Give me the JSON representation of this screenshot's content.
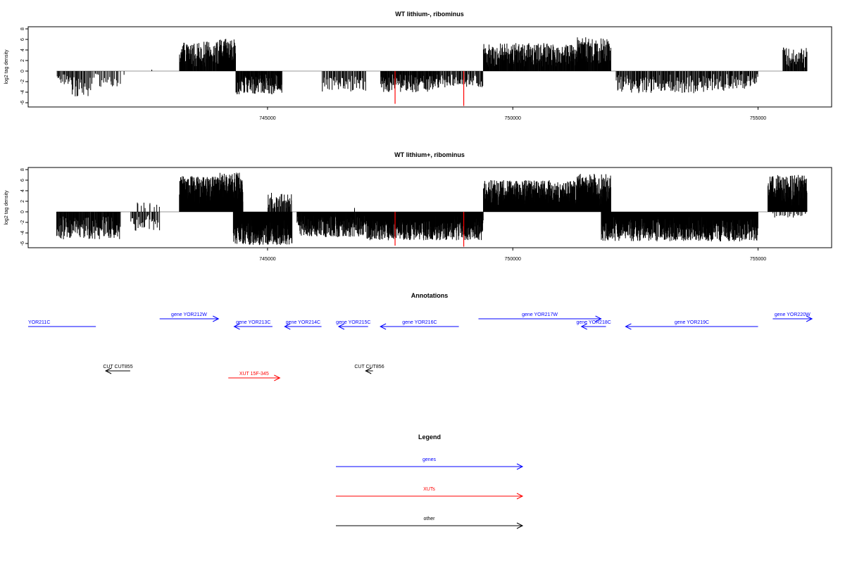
{
  "chart_data": [
    {
      "type": "bar",
      "title": "WT lithium-, ribominus",
      "ylabel": "log2 tag density",
      "xlim": [
        740120,
        756500
      ],
      "ylim": [
        -6.8,
        8.4
      ],
      "yticks": [
        -6,
        -4,
        -2,
        0,
        2,
        4,
        6,
        8
      ],
      "xticks": [
        745000,
        750000,
        755000
      ],
      "baseline_color": "#999999",
      "bar_color": "#000000",
      "highlight_color": "#ff0000",
      "highlight_bars": [
        {
          "x": 747600,
          "y": -6.2
        },
        {
          "x": 749000,
          "y": -6.6
        }
      ],
      "segments": [
        {
          "start": 740700,
          "end": 741000,
          "sign": -1,
          "max": 2.6,
          "density": 9
        },
        {
          "start": 741000,
          "end": 741400,
          "sign": -1,
          "max": 4.8,
          "density": 9
        },
        {
          "start": 741400,
          "end": 742000,
          "sign": -1,
          "max": 3.0,
          "density": 6
        },
        {
          "start": 742000,
          "end": 742100,
          "sign": -1,
          "max": 1.6,
          "density": 2
        },
        {
          "start": 742600,
          "end": 742650,
          "sign": 1,
          "max": 0.5,
          "density": 1
        },
        {
          "start": 743200,
          "end": 744000,
          "sign": 1,
          "max": 5.6,
          "density": 20
        },
        {
          "start": 744000,
          "end": 744350,
          "sign": 1,
          "max": 6.1,
          "density": 26
        },
        {
          "start": 744350,
          "end": 745300,
          "sign": -1,
          "max": 4.4,
          "density": 18
        },
        {
          "start": 746100,
          "end": 747000,
          "sign": -1,
          "max": 3.9,
          "density": 9
        },
        {
          "start": 747300,
          "end": 748500,
          "sign": -1,
          "max": 4.0,
          "density": 16
        },
        {
          "start": 748500,
          "end": 749400,
          "sign": -1,
          "max": 3.2,
          "density": 10
        },
        {
          "start": 749400,
          "end": 751500,
          "sign": 1,
          "max": 5.3,
          "density": 20
        },
        {
          "start": 751300,
          "end": 752000,
          "sign": 1,
          "max": 6.5,
          "density": 20
        },
        {
          "start": 752100,
          "end": 754000,
          "sign": -1,
          "max": 4.2,
          "density": 11
        },
        {
          "start": 754000,
          "end": 755000,
          "sign": -1,
          "max": 3.8,
          "density": 10
        },
        {
          "start": 755500,
          "end": 756000,
          "sign": 1,
          "max": 4.5,
          "density": 14
        }
      ]
    },
    {
      "type": "bar",
      "title": "WT lithium+, ribominus",
      "ylabel": "log2 tag density",
      "xlim": [
        740120,
        756500
      ],
      "ylim": [
        -6.8,
        8.4
      ],
      "yticks": [
        -6,
        -4,
        -2,
        0,
        2,
        4,
        6,
        8
      ],
      "xticks": [
        745000,
        750000,
        755000
      ],
      "baseline_color": "#999999",
      "bar_color": "#000000",
      "highlight_color": "#ff0000",
      "highlight_bars": [
        {
          "x": 747600,
          "y": -6.4
        },
        {
          "x": 749000,
          "y": -6.6
        }
      ],
      "segments": [
        {
          "start": 740700,
          "end": 742000,
          "sign": -1,
          "max": 5.2,
          "density": 16
        },
        {
          "start": 742200,
          "end": 742800,
          "sign": -1,
          "max": 3.6,
          "density": 8
        },
        {
          "start": 742300,
          "end": 742800,
          "sign": 1,
          "max": 1.8,
          "density": 3
        },
        {
          "start": 743200,
          "end": 744000,
          "sign": 1,
          "max": 6.8,
          "density": 35
        },
        {
          "start": 744000,
          "end": 744500,
          "sign": 1,
          "max": 7.5,
          "density": 35
        },
        {
          "start": 744300,
          "end": 745500,
          "sign": -1,
          "max": 6.3,
          "density": 35
        },
        {
          "start": 745000,
          "end": 745500,
          "sign": 1,
          "max": 3.6,
          "density": 12
        },
        {
          "start": 745600,
          "end": 747000,
          "sign": -1,
          "max": 4.8,
          "density": 24
        },
        {
          "start": 746700,
          "end": 746800,
          "sign": 1,
          "max": 3.0,
          "density": 1
        },
        {
          "start": 747000,
          "end": 749400,
          "sign": -1,
          "max": 5.4,
          "density": 30
        },
        {
          "start": 749400,
          "end": 751700,
          "sign": 1,
          "max": 6.0,
          "density": 32
        },
        {
          "start": 751300,
          "end": 752000,
          "sign": 1,
          "max": 7.2,
          "density": 28
        },
        {
          "start": 751800,
          "end": 755000,
          "sign": -1,
          "max": 5.6,
          "density": 30
        },
        {
          "start": 755200,
          "end": 756000,
          "sign": 1,
          "max": 7.0,
          "density": 30
        },
        {
          "start": 755300,
          "end": 756000,
          "sign": -1,
          "max": 1.2,
          "density": 4
        }
      ]
    }
  ],
  "annotations": {
    "title": "Annotations",
    "xlim": [
      740120,
      756500
    ],
    "tracks": [
      {
        "label": "YOR211C",
        "start": 740120,
        "end": 741500,
        "strand": "-",
        "color": "#0000ff",
        "level": 2,
        "head": false
      },
      {
        "label": "gene YOR212W",
        "start": 742800,
        "end": 744000,
        "strand": "+",
        "color": "#0000ff",
        "level": 1,
        "head": true
      },
      {
        "label": "gene YOR213C",
        "start": 744320,
        "end": 745100,
        "strand": "-",
        "color": "#0000ff",
        "level": 2,
        "head": true
      },
      {
        "label": "gene YOR214C",
        "start": 745350,
        "end": 746100,
        "strand": "-",
        "color": "#0000ff",
        "level": 2,
        "head": true
      },
      {
        "label": "gene YOR215C",
        "start": 746450,
        "end": 747050,
        "strand": "-",
        "color": "#0000ff",
        "level": 2,
        "head": true
      },
      {
        "label": "gene YOR216C",
        "start": 747300,
        "end": 748900,
        "strand": "-",
        "color": "#0000ff",
        "level": 2,
        "head": true
      },
      {
        "label": "gene YOR217W",
        "start": 749300,
        "end": 751800,
        "strand": "+",
        "color": "#0000ff",
        "level": 1,
        "head": true
      },
      {
        "label": "gene YOR218C",
        "start": 751400,
        "end": 751900,
        "strand": "-",
        "color": "#0000ff",
        "level": 2,
        "head": true
      },
      {
        "label": "gene YOR219C",
        "start": 752300,
        "end": 755000,
        "strand": "-",
        "color": "#0000ff",
        "level": 2,
        "head": true
      },
      {
        "label": "gene YOR220W",
        "start": 755300,
        "end": 756100,
        "strand": "+",
        "color": "#0000ff",
        "level": 1,
        "head": true
      },
      {
        "label": "CUT CUT855",
        "start": 741700,
        "end": 742200,
        "strand": "-",
        "color": "#000000",
        "level": 3,
        "head": true
      },
      {
        "label": "CUT CUT856",
        "start": 747000,
        "end": 747150,
        "strand": "-",
        "color": "#000000",
        "level": 3,
        "head": true
      },
      {
        "label": "XUT 15F-345",
        "start": 744200,
        "end": 745250,
        "strand": "+",
        "color": "#ff0000",
        "level": 4,
        "head": true
      }
    ]
  },
  "legend": {
    "title": "Legend",
    "items": [
      {
        "label": "genes",
        "color": "#0000ff"
      },
      {
        "label": "XUTs",
        "color": "#ff0000"
      },
      {
        "label": "other",
        "color": "#000000"
      }
    ]
  }
}
